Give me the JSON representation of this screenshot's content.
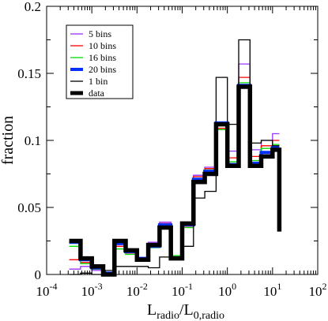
{
  "chart_data": {
    "type": "line",
    "step": true,
    "xscale": "log",
    "xlim_exp": [
      -4,
      2
    ],
    "ylim": [
      0,
      0.2
    ],
    "xtick_exponents": [
      -4,
      -3,
      -2,
      -1,
      0,
      1,
      2
    ],
    "xtick_base": "10",
    "yticks": [
      0,
      0.05,
      0.1,
      0.15,
      0.2
    ],
    "ytick_labels": [
      "0",
      "0.05",
      "0.1",
      "0.15",
      "0.2"
    ],
    "xlabel": {
      "main": "L",
      "sub1": "radio",
      "mid": "/L",
      "sub2": "0,radio"
    },
    "ylabel": "fraction",
    "legend_position": "top-left",
    "bin_edges_exp": [
      -3.5,
      -3.25,
      -3.0,
      -2.75,
      -2.5,
      -2.25,
      -2.0,
      -1.75,
      -1.5,
      -1.25,
      -1.0,
      -0.75,
      -0.5,
      -0.25,
      0.0,
      0.25,
      0.5,
      0.75,
      1.0,
      1.15
    ],
    "series": [
      {
        "name": "5 bins",
        "color": "#9b30ff",
        "width": 1.3,
        "values": [
          0.004,
          0.006,
          0.003,
          0.001,
          0.023,
          0.019,
          0.012,
          0.024,
          0.039,
          0.012,
          0.038,
          0.074,
          0.08,
          0.112,
          0.092,
          0.157,
          0.093,
          0.1,
          0.105
        ]
      },
      {
        "name": "10 bins",
        "color": "#ff0000",
        "width": 1.3,
        "values": [
          0.011,
          0.009,
          0.004,
          0.001,
          0.021,
          0.016,
          0.012,
          0.022,
          0.038,
          0.013,
          0.036,
          0.073,
          0.079,
          0.109,
          0.087,
          0.147,
          0.088,
          0.096,
          0.1
        ]
      },
      {
        "name": "16 bins",
        "color": "#00dd00",
        "width": 1.3,
        "values": [
          0.021,
          0.008,
          0.004,
          0.001,
          0.019,
          0.015,
          0.011,
          0.02,
          0.035,
          0.014,
          0.035,
          0.071,
          0.078,
          0.108,
          0.084,
          0.143,
          0.085,
          0.094,
          0.097
        ]
      },
      {
        "name": "20 bins",
        "color": "#0030ff",
        "width": 4,
        "values": [
          0.024,
          0.011,
          0.005,
          0.001,
          0.023,
          0.017,
          0.012,
          0.021,
          0.037,
          0.012,
          0.037,
          0.071,
          0.077,
          0.113,
          0.082,
          0.141,
          0.083,
          0.091,
          0.095
        ]
      },
      {
        "name": "1 bin",
        "color": "#000000",
        "width": 1.3,
        "values": [
          0.0,
          0.001,
          0.0,
          0.003,
          0.006,
          0.006,
          0.006,
          0.005,
          0.013,
          0.011,
          0.021,
          0.057,
          0.062,
          0.147,
          0.112,
          0.175,
          0.098,
          0.1,
          0.096
        ]
      },
      {
        "name": "data",
        "color": "#000000",
        "width": 5.5,
        "final_drop": 0.032,
        "values": [
          0.025,
          0.012,
          0.006,
          0.0,
          0.025,
          0.018,
          0.011,
          0.022,
          0.035,
          0.012,
          0.038,
          0.069,
          0.075,
          0.112,
          0.081,
          0.14,
          0.081,
          0.088,
          0.093
        ]
      }
    ]
  }
}
